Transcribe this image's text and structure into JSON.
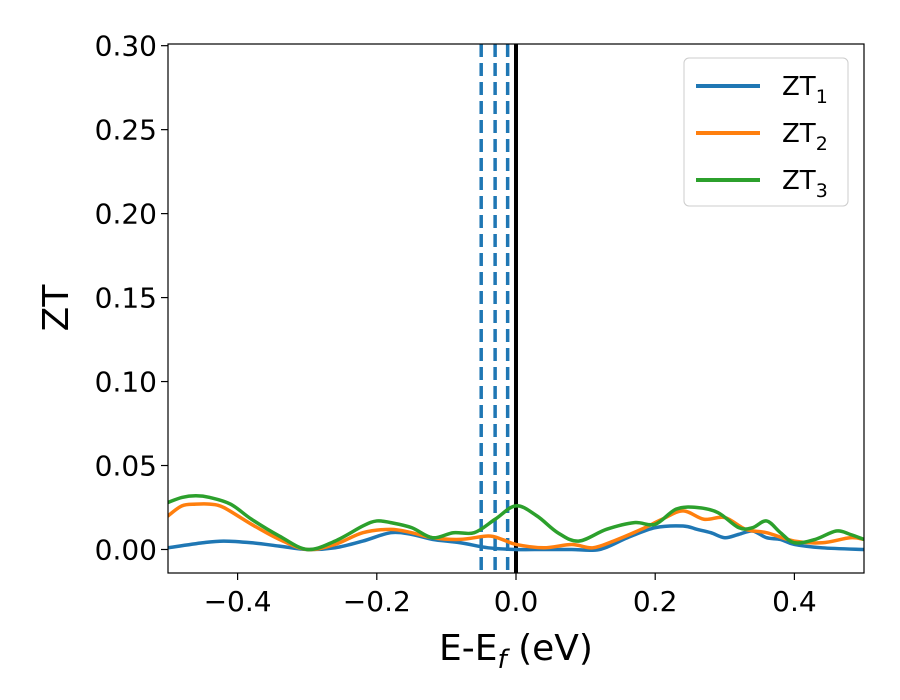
{
  "chart_data": {
    "type": "line",
    "title": "",
    "xlabel": "E-E",
    "xlabel_sub": "f",
    "xlabel_unit": " (eV)",
    "ylabel": "ZT",
    "xlim": [
      -0.5,
      0.5
    ],
    "ylim": [
      -0.014,
      0.301
    ],
    "xticks": [
      -0.4,
      -0.2,
      0.0,
      0.2,
      0.4
    ],
    "xtick_labels": [
      "−0.4",
      "−0.2",
      "0.0",
      "0.2",
      "0.4"
    ],
    "yticks": [
      0.0,
      0.05,
      0.1,
      0.15,
      0.2,
      0.25,
      0.3
    ],
    "ytick_labels": [
      "0.00",
      "0.05",
      "0.10",
      "0.15",
      "0.20",
      "0.25",
      "0.30"
    ],
    "grid": false,
    "legend_position": "top-right",
    "series": [
      {
        "name": "ZT",
        "sub": "1",
        "color": "#1f77b4",
        "x": [
          -0.5,
          -0.45,
          -0.42,
          -0.38,
          -0.34,
          -0.3,
          -0.26,
          -0.22,
          -0.18,
          -0.15,
          -0.12,
          -0.08,
          -0.04,
          0.0,
          0.04,
          0.08,
          0.12,
          0.16,
          0.2,
          0.24,
          0.26,
          0.28,
          0.3,
          0.32,
          0.34,
          0.36,
          0.38,
          0.4,
          0.44,
          0.5
        ],
        "y": [
          0.001,
          0.004,
          0.005,
          0.004,
          0.002,
          0.0,
          0.001,
          0.005,
          0.01,
          0.009,
          0.006,
          0.004,
          0.001,
          0.0,
          0.0,
          0.0,
          0.0,
          0.007,
          0.013,
          0.014,
          0.012,
          0.01,
          0.007,
          0.009,
          0.011,
          0.007,
          0.006,
          0.003,
          0.001,
          0.0
        ]
      },
      {
        "name": "ZT",
        "sub": "2",
        "color": "#ff7f0e",
        "x": [
          -0.5,
          -0.48,
          -0.46,
          -0.44,
          -0.42,
          -0.38,
          -0.34,
          -0.3,
          -0.26,
          -0.22,
          -0.18,
          -0.15,
          -0.12,
          -0.08,
          -0.04,
          -0.02,
          0.0,
          0.04,
          0.08,
          0.11,
          0.14,
          0.18,
          0.21,
          0.24,
          0.27,
          0.3,
          0.33,
          0.36,
          0.4,
          0.44,
          0.48,
          0.5
        ],
        "y": [
          0.02,
          0.026,
          0.027,
          0.027,
          0.025,
          0.015,
          0.006,
          0.0,
          0.003,
          0.01,
          0.012,
          0.01,
          0.007,
          0.006,
          0.008,
          0.006,
          0.003,
          0.001,
          0.003,
          0.001,
          0.005,
          0.012,
          0.018,
          0.023,
          0.018,
          0.019,
          0.012,
          0.01,
          0.005,
          0.004,
          0.007,
          0.006
        ]
      },
      {
        "name": "ZT",
        "sub": "3",
        "color": "#2ca02c",
        "x": [
          -0.5,
          -0.48,
          -0.46,
          -0.44,
          -0.41,
          -0.38,
          -0.34,
          -0.3,
          -0.26,
          -0.22,
          -0.2,
          -0.18,
          -0.15,
          -0.12,
          -0.09,
          -0.06,
          -0.03,
          0.0,
          0.03,
          0.06,
          0.09,
          0.13,
          0.17,
          0.2,
          0.23,
          0.26,
          0.29,
          0.32,
          0.34,
          0.36,
          0.38,
          0.4,
          0.43,
          0.46,
          0.48,
          0.5
        ],
        "y": [
          0.028,
          0.031,
          0.032,
          0.031,
          0.027,
          0.018,
          0.008,
          0.0,
          0.005,
          0.014,
          0.017,
          0.016,
          0.013,
          0.007,
          0.01,
          0.01,
          0.018,
          0.026,
          0.02,
          0.01,
          0.005,
          0.012,
          0.016,
          0.015,
          0.024,
          0.025,
          0.022,
          0.013,
          0.013,
          0.017,
          0.01,
          0.004,
          0.006,
          0.011,
          0.009,
          0.006
        ]
      }
    ],
    "vlines": [
      {
        "x": -0.05,
        "style": "dashed",
        "color": "#1f77b4"
      },
      {
        "x": -0.03,
        "style": "dashed",
        "color": "#1f77b4"
      },
      {
        "x": -0.012,
        "style": "dashed",
        "color": "#1f77b4"
      },
      {
        "x": 0.0,
        "style": "solid",
        "color": "#000000"
      }
    ]
  }
}
